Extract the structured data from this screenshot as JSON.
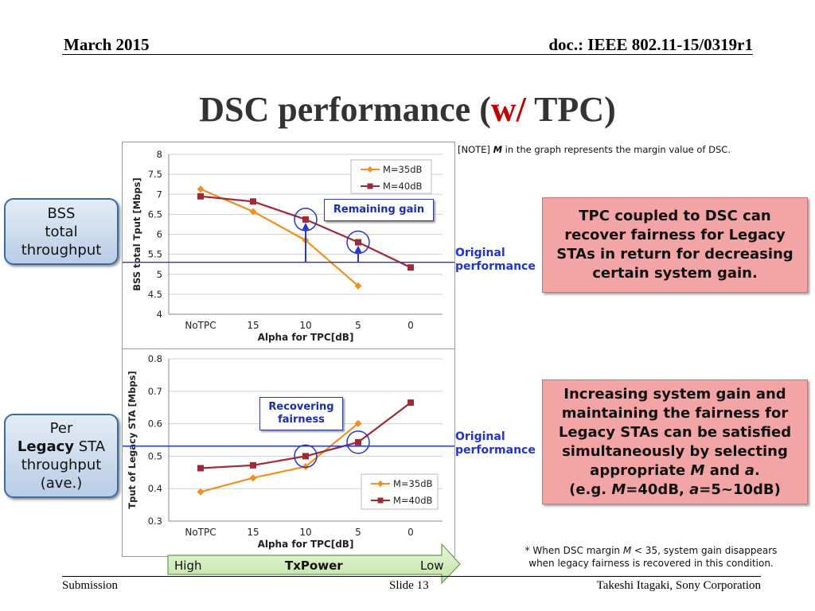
{
  "header": {
    "date": "March 2015",
    "doc": "doc.: IEEE 802.11-15/0319r1"
  },
  "title": {
    "pre": "DSC performance (",
    "highlight": "w/",
    "post": " TPC)"
  },
  "note": {
    "prefix": "[NOTE] ",
    "m": "M",
    "suffix": " in the graph represents the margin value of DSC."
  },
  "side_labels": {
    "bss": [
      "BSS",
      "total",
      "throughput"
    ],
    "legacy_per": "Per",
    "legacy_bold": "Legacy",
    "legacy_sta": " STA",
    "legacy_rest": [
      "throughput",
      "(ave.)"
    ]
  },
  "callouts": {
    "remaining": "Remaining gain",
    "recovering_1": "Recovering",
    "recovering_2": "fairness"
  },
  "original_performance": [
    "Original",
    "performance"
  ],
  "box1": [
    "TPC coupled to DSC can",
    "recover fairness for Legacy",
    "STAs in return for decreasing",
    "certain system gain."
  ],
  "box2": {
    "l1": "Increasing system gain and",
    "l2": "maintaining the fairness for",
    "l3": "Legacy STAs can be satisfied",
    "l4": "simultaneously by selecting",
    "l5a": "appropriate ",
    "l5m": "M",
    "l5b": " and ",
    "l5a2": "a",
    "l5c": ".",
    "l6a": "(e.g. ",
    "l6m": "M",
    "l6b": "=40dB, ",
    "l6a2": "a",
    "l6c": "=5~10dB)"
  },
  "footnote": {
    "l1a": "* When DSC margin ",
    "l1m": "M",
    "l1b": " < 35, system gain disappears",
    "l2": "when legacy fairness is recovered in this condition."
  },
  "arrow": {
    "high": "High",
    "mid": "TxPower",
    "low": "Low"
  },
  "footer": {
    "left": "Submission",
    "center": "Slide 13",
    "right": "Takeshi Itagaki, Sony Corporation"
  },
  "colors": {
    "m35": "#f0901e",
    "m40": "#9e2a37",
    "original_line": "#2637c4",
    "circle": "#2637c4"
  },
  "chart_data": [
    {
      "type": "line",
      "categories": [
        "NoTPC",
        "15",
        "10",
        "5",
        "0"
      ],
      "xlabel": "Alpha for TPC[dB]",
      "ylabel": "BSS total Tput [Mbps]",
      "ylim": [
        4,
        8
      ],
      "yticks": [
        "4",
        "4.5",
        "5",
        "5.5",
        "6",
        "6.5",
        "7",
        "7.5",
        "8"
      ],
      "ytick_values": [
        4,
        4.5,
        5,
        5.5,
        6,
        6.5,
        7,
        7.5,
        8
      ],
      "grid": true,
      "legend": "top-right",
      "series": [
        {
          "name": "M=35dB",
          "values": [
            7.13,
            6.57,
            5.85,
            4.71,
            null
          ]
        },
        {
          "name": "M=40dB",
          "values": [
            6.95,
            6.82,
            6.37,
            5.8,
            5.17
          ]
        }
      ],
      "original_performance": 5.3,
      "highlight_index": [
        2,
        3
      ]
    },
    {
      "type": "line",
      "categories": [
        "NoTPC",
        "15",
        "10",
        "5",
        "0"
      ],
      "xlabel": "Alpha for TPC[dB]",
      "ylabel": "Tput of Legacy STA [Mbps]",
      "ylim": [
        0.3,
        0.8
      ],
      "yticks": [
        "0.3",
        "0.4",
        "0.5",
        "0.6",
        "0.7",
        "0.8"
      ],
      "ytick_values": [
        0.3,
        0.4,
        0.5,
        0.6,
        0.7,
        0.8
      ],
      "grid": true,
      "legend": "bottom-right",
      "series": [
        {
          "name": "M=35dB",
          "values": [
            0.39,
            0.433,
            0.468,
            0.601,
            null
          ]
        },
        {
          "name": "M=40dB",
          "values": [
            0.463,
            0.472,
            0.5,
            0.543,
            0.665
          ]
        }
      ],
      "original_performance": 0.531,
      "highlight_index": [
        2,
        3
      ]
    }
  ]
}
